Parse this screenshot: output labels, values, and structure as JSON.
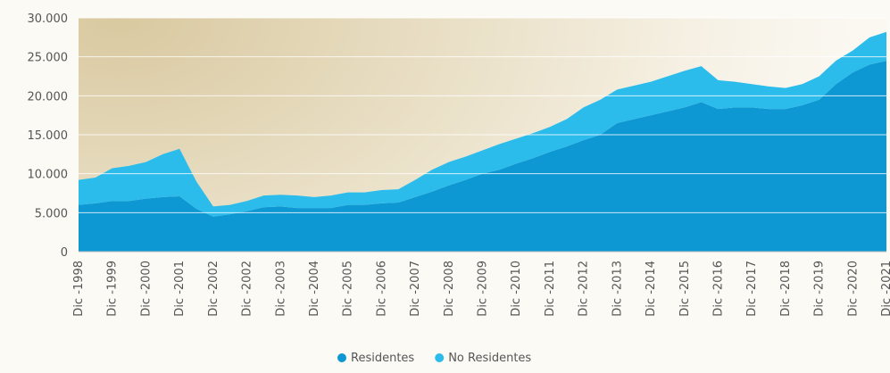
{
  "chart_data": {
    "type": "stacked_area",
    "categories": [
      "Dic -1998",
      null,
      "Dic -1999",
      null,
      "Dic -2000",
      null,
      "Dic -2001",
      null,
      "Dic -2002",
      null,
      "Dic -2002",
      null,
      "Dic -2003",
      null,
      "Dic -2004",
      null,
      "Dic -2005",
      null,
      "Dic -2006",
      null,
      "Dic -2007",
      null,
      "Dic -2008",
      null,
      "Dic -2009",
      null,
      "Dic -2010",
      null,
      "Dic -2011",
      null,
      "Dic -2012",
      null,
      "Dic -2013",
      null,
      "Dic -2014",
      null,
      "Dic -2015",
      null,
      "Dic -2016",
      null,
      "Dic -2017",
      null,
      "Dic -2018",
      null,
      "Dic -2019",
      null,
      "Dic -2020",
      null,
      "Dic -2021"
    ],
    "series": [
      {
        "name": "Residentes",
        "color": "#0d98d4",
        "values": [
          6000,
          6200,
          6500,
          6500,
          6800,
          7000,
          7100,
          5500,
          4500,
          4800,
          5200,
          5700,
          5800,
          5600,
          5600,
          5600,
          6000,
          6000,
          6200,
          6300,
          7000,
          7700,
          8500,
          9200,
          10000,
          10500,
          11300,
          12000,
          12800,
          13500,
          14300,
          15000,
          16500,
          17000,
          17500,
          18000,
          18500,
          19200,
          18300,
          18500,
          18500,
          18300,
          18300,
          18800,
          19500,
          21500,
          23000,
          24000,
          24500
        ]
      },
      {
        "name": "No Residentes",
        "color": "#2bbcec",
        "values": [
          3200,
          3300,
          4200,
          4500,
          4700,
          5500,
          6100,
          3500,
          1300,
          1200,
          1300,
          1500,
          1500,
          1600,
          1400,
          1600,
          1600,
          1600,
          1700,
          1700,
          2200,
          2800,
          3000,
          3000,
          3000,
          3300,
          3200,
          3200,
          3200,
          3500,
          4200,
          4500,
          4300,
          4300,
          4300,
          4500,
          4700,
          4600,
          3700,
          3300,
          3000,
          2900,
          2700,
          2700,
          3000,
          3000,
          2800,
          3500,
          3700
        ]
      }
    ],
    "ylim": [
      0,
      30000
    ],
    "yticks": [
      0,
      {
        "value": 5000,
        "label": "5.000"
      },
      {
        "value": 10000,
        "label": "10.000"
      },
      {
        "value": 15000,
        "label": "15.000"
      },
      {
        "value": 20000,
        "label": "20.000"
      },
      {
        "value": 25000,
        "label": "25.000"
      },
      {
        "value": 30000,
        "label": "30.000"
      }
    ],
    "grid": true,
    "legend": "bottom"
  }
}
